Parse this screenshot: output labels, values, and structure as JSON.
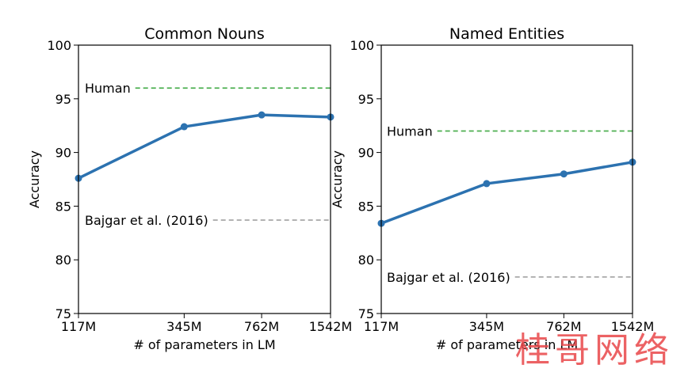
{
  "watermark": "桂哥网络",
  "chart_data": [
    {
      "type": "line",
      "title": "Common Nouns",
      "xlabel": "# of parameters in LM",
      "ylabel": "Accuracy",
      "xscale": "log",
      "categories": [
        "117M",
        "345M",
        "762M",
        "1542M"
      ],
      "x": [
        117,
        345,
        762,
        1542
      ],
      "yticks": [
        75,
        80,
        85,
        90,
        95,
        100
      ],
      "ylim": [
        75,
        100
      ],
      "series": [
        {
          "values": [
            87.6,
            92.4,
            93.5,
            93.3
          ],
          "color": "#2c72b0"
        }
      ],
      "reference_lines": [
        {
          "label": "Human",
          "value": 96.0,
          "color": "#4caf50"
        },
        {
          "label": "Bajgar et al. (2016)",
          "value": 83.7,
          "color": "#a8a8a8"
        }
      ],
      "grid": false
    },
    {
      "type": "line",
      "title": "Named Entities",
      "xlabel": "# of parameters in LM",
      "ylabel": "Accuracy",
      "xscale": "log",
      "categories": [
        "117M",
        "345M",
        "762M",
        "1542M"
      ],
      "x": [
        117,
        345,
        762,
        1542
      ],
      "yticks": [
        75,
        80,
        85,
        90,
        95,
        100
      ],
      "ylim": [
        75,
        100
      ],
      "series": [
        {
          "values": [
            83.4,
            87.1,
            88.0,
            89.1
          ],
          "color": "#2c72b0"
        }
      ],
      "reference_lines": [
        {
          "label": "Human",
          "value": 92.0,
          "color": "#4caf50"
        },
        {
          "label": "Bajgar et al. (2016)",
          "value": 78.4,
          "color": "#a8a8a8"
        }
      ],
      "grid": false
    }
  ]
}
